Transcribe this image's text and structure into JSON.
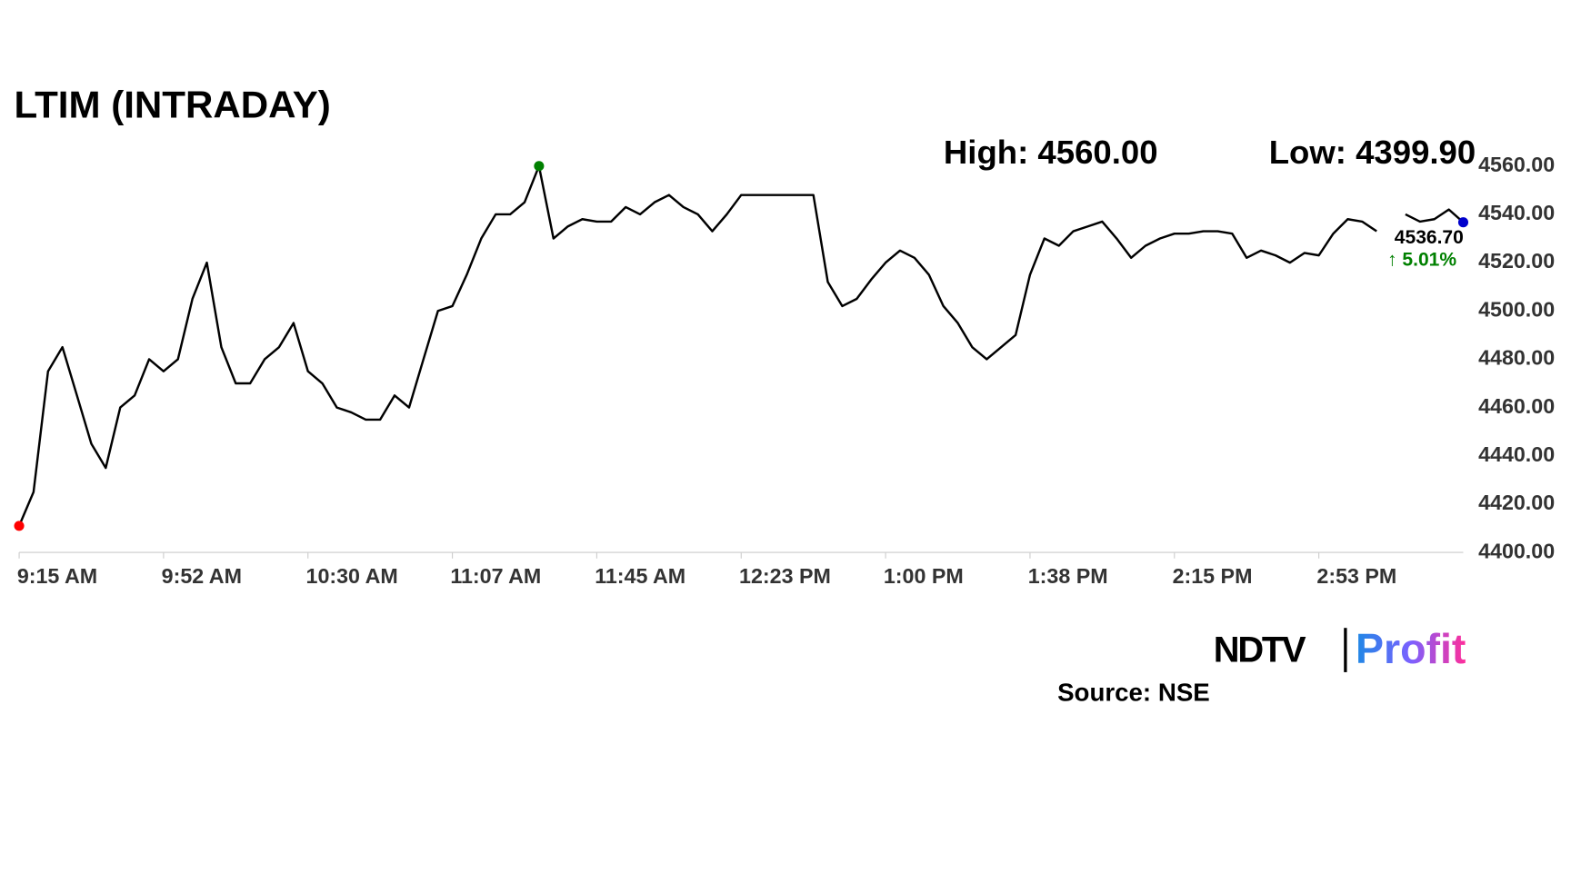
{
  "chart_data": {
    "type": "line",
    "title": "LTIM (INTRADAY)",
    "annotations": {
      "high": "High: 4560.00",
      "low": "Low: 4399.90",
      "last": "4536.70",
      "change": "↑ 5.01%"
    },
    "source": "Source: NSE",
    "logo": {
      "brand": "NDTV",
      "product": "Profit"
    },
    "categories": [
      "9:15 AM",
      null,
      null,
      null,
      null,
      null,
      null,
      null,
      null,
      null,
      "9:52 AM",
      null,
      null,
      null,
      null,
      null,
      null,
      null,
      null,
      null,
      "10:30 AM",
      null,
      null,
      null,
      null,
      null,
      null,
      null,
      null,
      null,
      "11:07 AM",
      null,
      null,
      null,
      null,
      null,
      null,
      null,
      null,
      null,
      "11:45 AM",
      null,
      null,
      null,
      null,
      null,
      null,
      null,
      null,
      null,
      "12:23 PM",
      null,
      null,
      null,
      null,
      null,
      null,
      null,
      null,
      null,
      "1:00 PM",
      null,
      null,
      null,
      null,
      null,
      null,
      null,
      null,
      null,
      "1:38 PM",
      null,
      null,
      null,
      null,
      null,
      null,
      null,
      null,
      null,
      "2:15 PM",
      null,
      null,
      null,
      null,
      null,
      null,
      null,
      null,
      null,
      "2:53 PM",
      null,
      null,
      null,
      null,
      null,
      null,
      null,
      null,
      null,
      null
    ],
    "series": [
      {
        "color": "#000000",
        "values": [
          4411,
          4425,
          4475,
          4485,
          4465,
          4445,
          4435,
          4460,
          4465,
          4480,
          4475,
          4480,
          4505,
          4520,
          4485,
          4470,
          4470,
          4480,
          4485,
          4495,
          4475,
          4470,
          4460,
          4458,
          4455,
          4455,
          4465,
          4460,
          4480,
          4500,
          4502,
          4515,
          4530,
          4540,
          4540,
          4545,
          4560,
          4530,
          4535,
          4538,
          4537,
          4537,
          4543,
          4540,
          4545,
          4548,
          4543,
          4540,
          4533,
          4540,
          4548,
          4548,
          4548,
          4548,
          4548,
          4548,
          4512,
          4502,
          4505,
          4513,
          4520,
          4525,
          4522,
          4515,
          4502,
          4495,
          4485,
          4480,
          4485,
          4490,
          4515,
          4530,
          4527,
          4533,
          4535,
          4537,
          4530,
          4522,
          4527,
          4530,
          4532,
          4532,
          4533,
          4533,
          4532,
          4522,
          4525,
          4523,
          4520,
          4524,
          4523,
          4532,
          4538,
          4537,
          4533,
          null,
          4540,
          4537,
          4538,
          4542,
          4536.7
        ]
      }
    ],
    "ylim": [
      4400,
      4560
    ],
    "yticks": [
      {
        "value": 4400,
        "label": "4400.00"
      },
      {
        "value": 4420,
        "label": "4420.00"
      },
      {
        "value": 4440,
        "label": "4440.00"
      },
      {
        "value": 4460,
        "label": "4460.00"
      },
      {
        "value": 4480,
        "label": "4480.00"
      },
      {
        "value": 4500,
        "label": "4500.00"
      },
      {
        "value": 4520,
        "label": "4520.00"
      },
      {
        "value": 4540,
        "label": "4540.00"
      },
      {
        "value": 4560,
        "label": "4560.00"
      }
    ],
    "grid": false,
    "high_color": "#008000",
    "low_color": "#ff0000",
    "last_color": "#0000cc",
    "change_color": "#008000"
  }
}
